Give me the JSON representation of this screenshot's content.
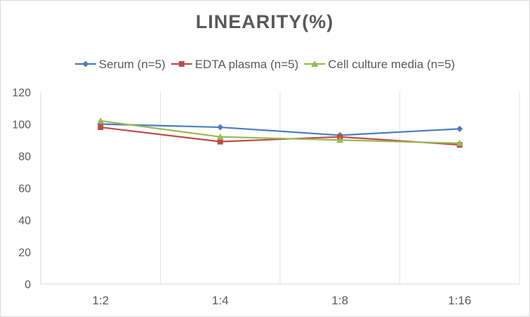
{
  "chart_data": {
    "type": "line",
    "title": "LINEARITY(%)",
    "xlabel": "",
    "ylabel": "",
    "categories": [
      "1:2",
      "1:4",
      "1:8",
      "1:16"
    ],
    "ylim": [
      0,
      120
    ],
    "yticks": [
      "0",
      "20",
      "40",
      "60",
      "80",
      "100",
      "120"
    ],
    "grid": "vertical",
    "legend_position": "top",
    "series": [
      {
        "name": "Serum (n=5)",
        "marker": "diamond",
        "color": "#4a7ebb",
        "values": [
          100,
          98,
          93,
          97
        ]
      },
      {
        "name": "EDTA plasma (n=5)",
        "marker": "square",
        "color": "#be4b48",
        "values": [
          98,
          89,
          92,
          87
        ]
      },
      {
        "name": "Cell culture media (n=5)",
        "marker": "triangle",
        "color": "#98b954",
        "values": [
          102,
          92,
          90,
          88
        ]
      }
    ]
  }
}
